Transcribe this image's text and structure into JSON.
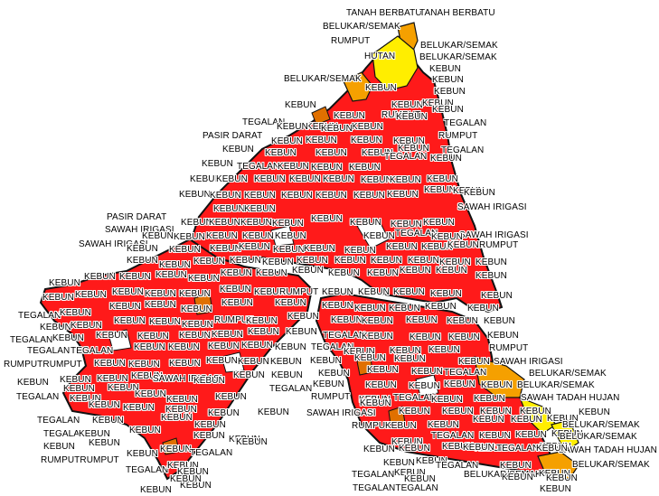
{
  "map": {
    "colors": {
      "kebun": "#ff1a1a",
      "belukar": "#f5a000",
      "hutan": "#ffee00",
      "rumput": "#e07000",
      "outline": "#111111",
      "background": "#ffffff"
    },
    "labels": [
      "TANAH BERBATU",
      "TANAH BERBATU",
      "BELUKAR/SEMAK",
      "RUMPUT",
      "BELUKAR/SEMAK",
      "HUTAN",
      "BELUKAR/SEMAK",
      "KEBUN",
      "BELUKAR/SEMAK",
      "KEBUN",
      "KEBUN",
      "KEBUN",
      "KEBUN",
      "KEBUN",
      "KEBUN",
      "RUMPUT",
      "KEBUN",
      "KEBUN",
      "KEBUN",
      "TEGALAN",
      "TEGALAN",
      "KEBUN",
      "KEBUN",
      "KEBUN",
      "KEBUN",
      "PASIR DARAT",
      "KEBUN",
      "KEBUN",
      "KEBUN",
      "KEBUN",
      "RUMPUT",
      "KEBUN",
      "KEBUN",
      "KEBUN",
      "KEBUN",
      "TEGALAN",
      "KEBUN",
      "TEGALAN",
      "KEBUN",
      "TEGALAN",
      "KEBUN",
      "KEBUN",
      "KEBUN",
      "KEBUN",
      "KEBUN",
      "KEBUN",
      "KEBUN",
      "KEBUN",
      "KEBUN",
      "KEBUN",
      "KEBUN",
      "KEBUN",
      "KEBUN",
      "KEBUN",
      "KEBUN",
      "KEBUN",
      "KEBUN",
      "KEBUN",
      "KEBUN",
      "KEBUN",
      "KEBUN",
      "KEBUN",
      "KEBUN",
      "SAWAH IRIGASI",
      "PASIR DARAT",
      "KEBUN",
      "KEBUN",
      "KEBUN",
      "KEBUN",
      "KEBUN",
      "KEBUN",
      "KEBUN",
      "KEBUN",
      "KEBUN",
      "SAWAH IRIGASI",
      "SAWAH IRIGASI",
      "KEBUN",
      "KEBUN",
      "KEBUN",
      "KEBUN",
      "KEBUN",
      "TEGALAN",
      "KEBUN",
      "KEBUN",
      "RUMPUT",
      "SAWAH IRIGASI",
      "KEBUN",
      "KEBUN",
      "KEBUN",
      "KEBUN",
      "KEBUN",
      "KEBUN",
      "KEBUN",
      "KEBUN",
      "KEBUN",
      "KEBUN",
      "KEBUN",
      "KEBUN",
      "KEBUN",
      "KEBUN",
      "KEBUN",
      "KEBUN",
      "KEBUN",
      "KEBUN",
      "KEBUN",
      "KEBUN",
      "KEBUN",
      "KEBUN",
      "KEBUN",
      "KEBUN",
      "KEBUN",
      "KEBUN",
      "KEBUN",
      "KEBUN",
      "KEBUN",
      "KEBUN",
      "RUMPUT",
      "KEBUN",
      "KEBUN",
      "KEBUN",
      "KEBUN",
      "KEBUN",
      "KEBUN",
      "KEBUN",
      "KEBUN",
      "KEBUN",
      "KEBUN",
      "KEBUN",
      "KEBUN",
      "KEBUN",
      "TEGALAN",
      "KEBUN",
      "KEBUN",
      "KEBUN",
      "KEBUN",
      "KEBUN",
      "KEBUN",
      "RUMPUT",
      "KEBUN",
      "KEBUN",
      "KEBUN",
      "KEBUN",
      "KEBUN",
      "KEBUN",
      "KEBUN",
      "KEBUN",
      "KEBUN",
      "KEBUN",
      "KEBUN",
      "KEBUN",
      "KEBUN",
      "TEGALAN",
      "KEBUN",
      "KEBUN",
      "KEBUN",
      "KEBUN",
      "KEBUN",
      "TEGALAN",
      "KEBUN",
      "KEBUN",
      "TEGALAN",
      "KEBUN",
      "KEBUN",
      "KEBUN",
      "KEBUN",
      "KEBUN",
      "KEBUN",
      "KEBUN",
      "KEBUN",
      "KEBUN",
      "TEGALAN",
      "KEBUN",
      "TEGALAN",
      "KEBUN",
      "KEBUN",
      "KEBUN",
      "RUMPUT",
      "KEBUN",
      "KEBUN",
      "KEBUN",
      "TEGALAN",
      "TEGALAN",
      "KEBUN",
      "KEBUN",
      "TEGALAN",
      "KEBUN",
      "KEBUN",
      "SAWAH IRIGASI",
      "RUMPUT",
      "KEBUN",
      "TEGALAN",
      "KEBUN",
      "KEBUN",
      "RUMPUT",
      "TEGALAN",
      "TEGALAN",
      "KEBUN",
      "KEBUN",
      "KEBUN",
      "KEBUN",
      "KEBUN",
      "KEBUN",
      "TEGALAN",
      "KEBUN",
      "KEBUN",
      "KEBUN",
      "BELUKAR/SEMAK",
      "SAWAH IRIGASI",
      "KEBUN",
      "KEBUN",
      "KEBUN",
      "KEBUN",
      "TEGALAN",
      "KEBUN",
      "KEBUN",
      "KEBUN",
      "KEBUN",
      "KEBUN",
      "KEBUN",
      "BELUKAR/SEMAK",
      "KEBUN",
      "KEBUN",
      "KEBUN",
      "KEBUN",
      "KEBUN",
      "TEGALAN",
      "KEBUN",
      "SAWAH TADAH HUJAN",
      "KEBUN",
      "KEBUN",
      "RUMPUT",
      "KEBUN",
      "KEBUN",
      "TEGALAN",
      "KEBUN",
      "KEBUN",
      "KEBUN",
      "KEBUN",
      "KEBUN",
      "KEBUN",
      "KEBUN",
      "TEGALAN",
      "KEBUN",
      "KEBUN",
      "KEBUN",
      "KEBUN",
      "BELUKAR/SEMAK",
      "KEBUN",
      "RUMPUTRUMPUT",
      "TEGALAN",
      "KEBUN",
      "KEBUN",
      "KEBUN",
      "KEBUN",
      "KEBUN",
      "TEGALAN",
      "KEBUN",
      "KEBUN",
      "KEBUN",
      "TEGALAN",
      "SAWAH TADAH HUJAN",
      "KEBUN",
      "KEBUN",
      "KEBUN",
      "KEBUN",
      "BELUKAR/SEMAK",
      "TEGALAN",
      "KEBUN",
      "KEBUN",
      "TEGALAN",
      "KEBUN",
      "BELUKAR/SEMAK",
      "KEBUN",
      "KEBUN",
      "KEBUN",
      "KEBUN",
      "KEBUN",
      "TEGALANTEGALAN",
      "KEBUN",
      "KEBUN",
      "KEBUN",
      "RUMPUTRUMPUT",
      "KEBUN",
      "KEBUN",
      "KEBUN",
      "KEBUN"
    ]
  }
}
